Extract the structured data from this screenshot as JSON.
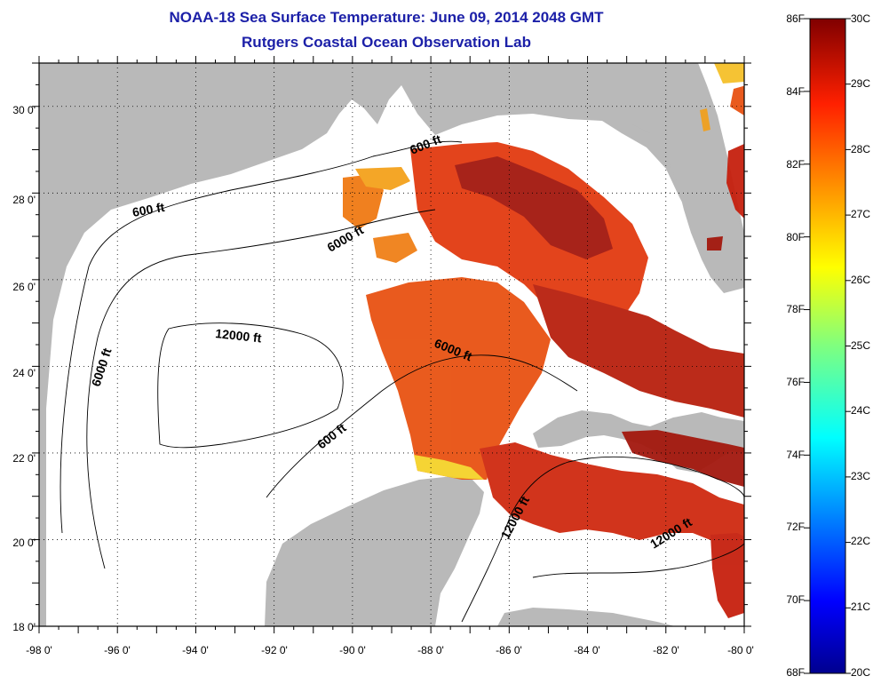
{
  "title": {
    "line1": "NOAA-18 Sea Surface Temperature:  June 09, 2014 2048 GMT",
    "line2": "Rutgers Coastal Ocean Observation Lab"
  },
  "map": {
    "lon_range": [
      -98,
      -80
    ],
    "lat_range": [
      18,
      31
    ],
    "x_ticks": [
      "-98 0'",
      "-96 0'",
      "-94 0'",
      "-92 0'",
      "-90 0'",
      "-88 0'",
      "-86 0'",
      "-84 0'",
      "-82 0'",
      "-80 0'"
    ],
    "y_ticks": [
      "30 0'",
      "28 0'",
      "26 0'",
      "24 0'",
      "22 0'",
      "20 0'",
      "18 0'"
    ],
    "contour_labels": [
      "600 ft",
      "600 ft",
      "6000 ft",
      "12000 ft",
      "6000 ft",
      "6000 ft",
      "600 ft",
      "12000 ft",
      "12000 ft"
    ],
    "colors": {
      "land": "#b9b9b9",
      "water": "#ffffff",
      "grid": "#000000"
    }
  },
  "colorbar": {
    "f_labels": [
      "86F",
      "84F",
      "82F",
      "80F",
      "78F",
      "76F",
      "74F",
      "72F",
      "70F",
      "68F"
    ],
    "c_labels": [
      "30C",
      "29C",
      "28C",
      "27C",
      "26C",
      "25C",
      "24C",
      "23C",
      "22C",
      "21C",
      "20C"
    ]
  }
}
